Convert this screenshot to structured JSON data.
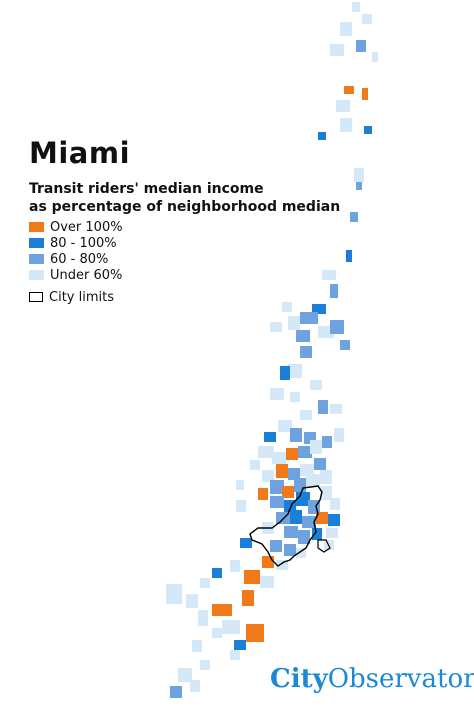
{
  "title": "Miami",
  "subtitle": {
    "line1": "Transit riders' median income",
    "line2": "as percentage of neighborhood median"
  },
  "legend": [
    {
      "label": "Over 100%",
      "color": "#f07a1a",
      "key": "over_100"
    },
    {
      "label": "80 - 100%",
      "color": "#1a7fd6",
      "key": "80_100"
    },
    {
      "label": "60 - 80%",
      "color": "#6fa3e0",
      "key": "60_80"
    },
    {
      "label": "Under 60%",
      "color": "#d4e8f7",
      "key": "under_60"
    }
  ],
  "city_limits_label": "City limits",
  "brand": {
    "part1": "City",
    "part2": "Observatory",
    "color": "#1a8ad6"
  },
  "colors": {
    "over_100": "#f07a1a",
    "80_100": "#1a7fd6",
    "60_80": "#6fa3e0",
    "under_60": "#d4e8f7",
    "outline": "#000000"
  }
}
